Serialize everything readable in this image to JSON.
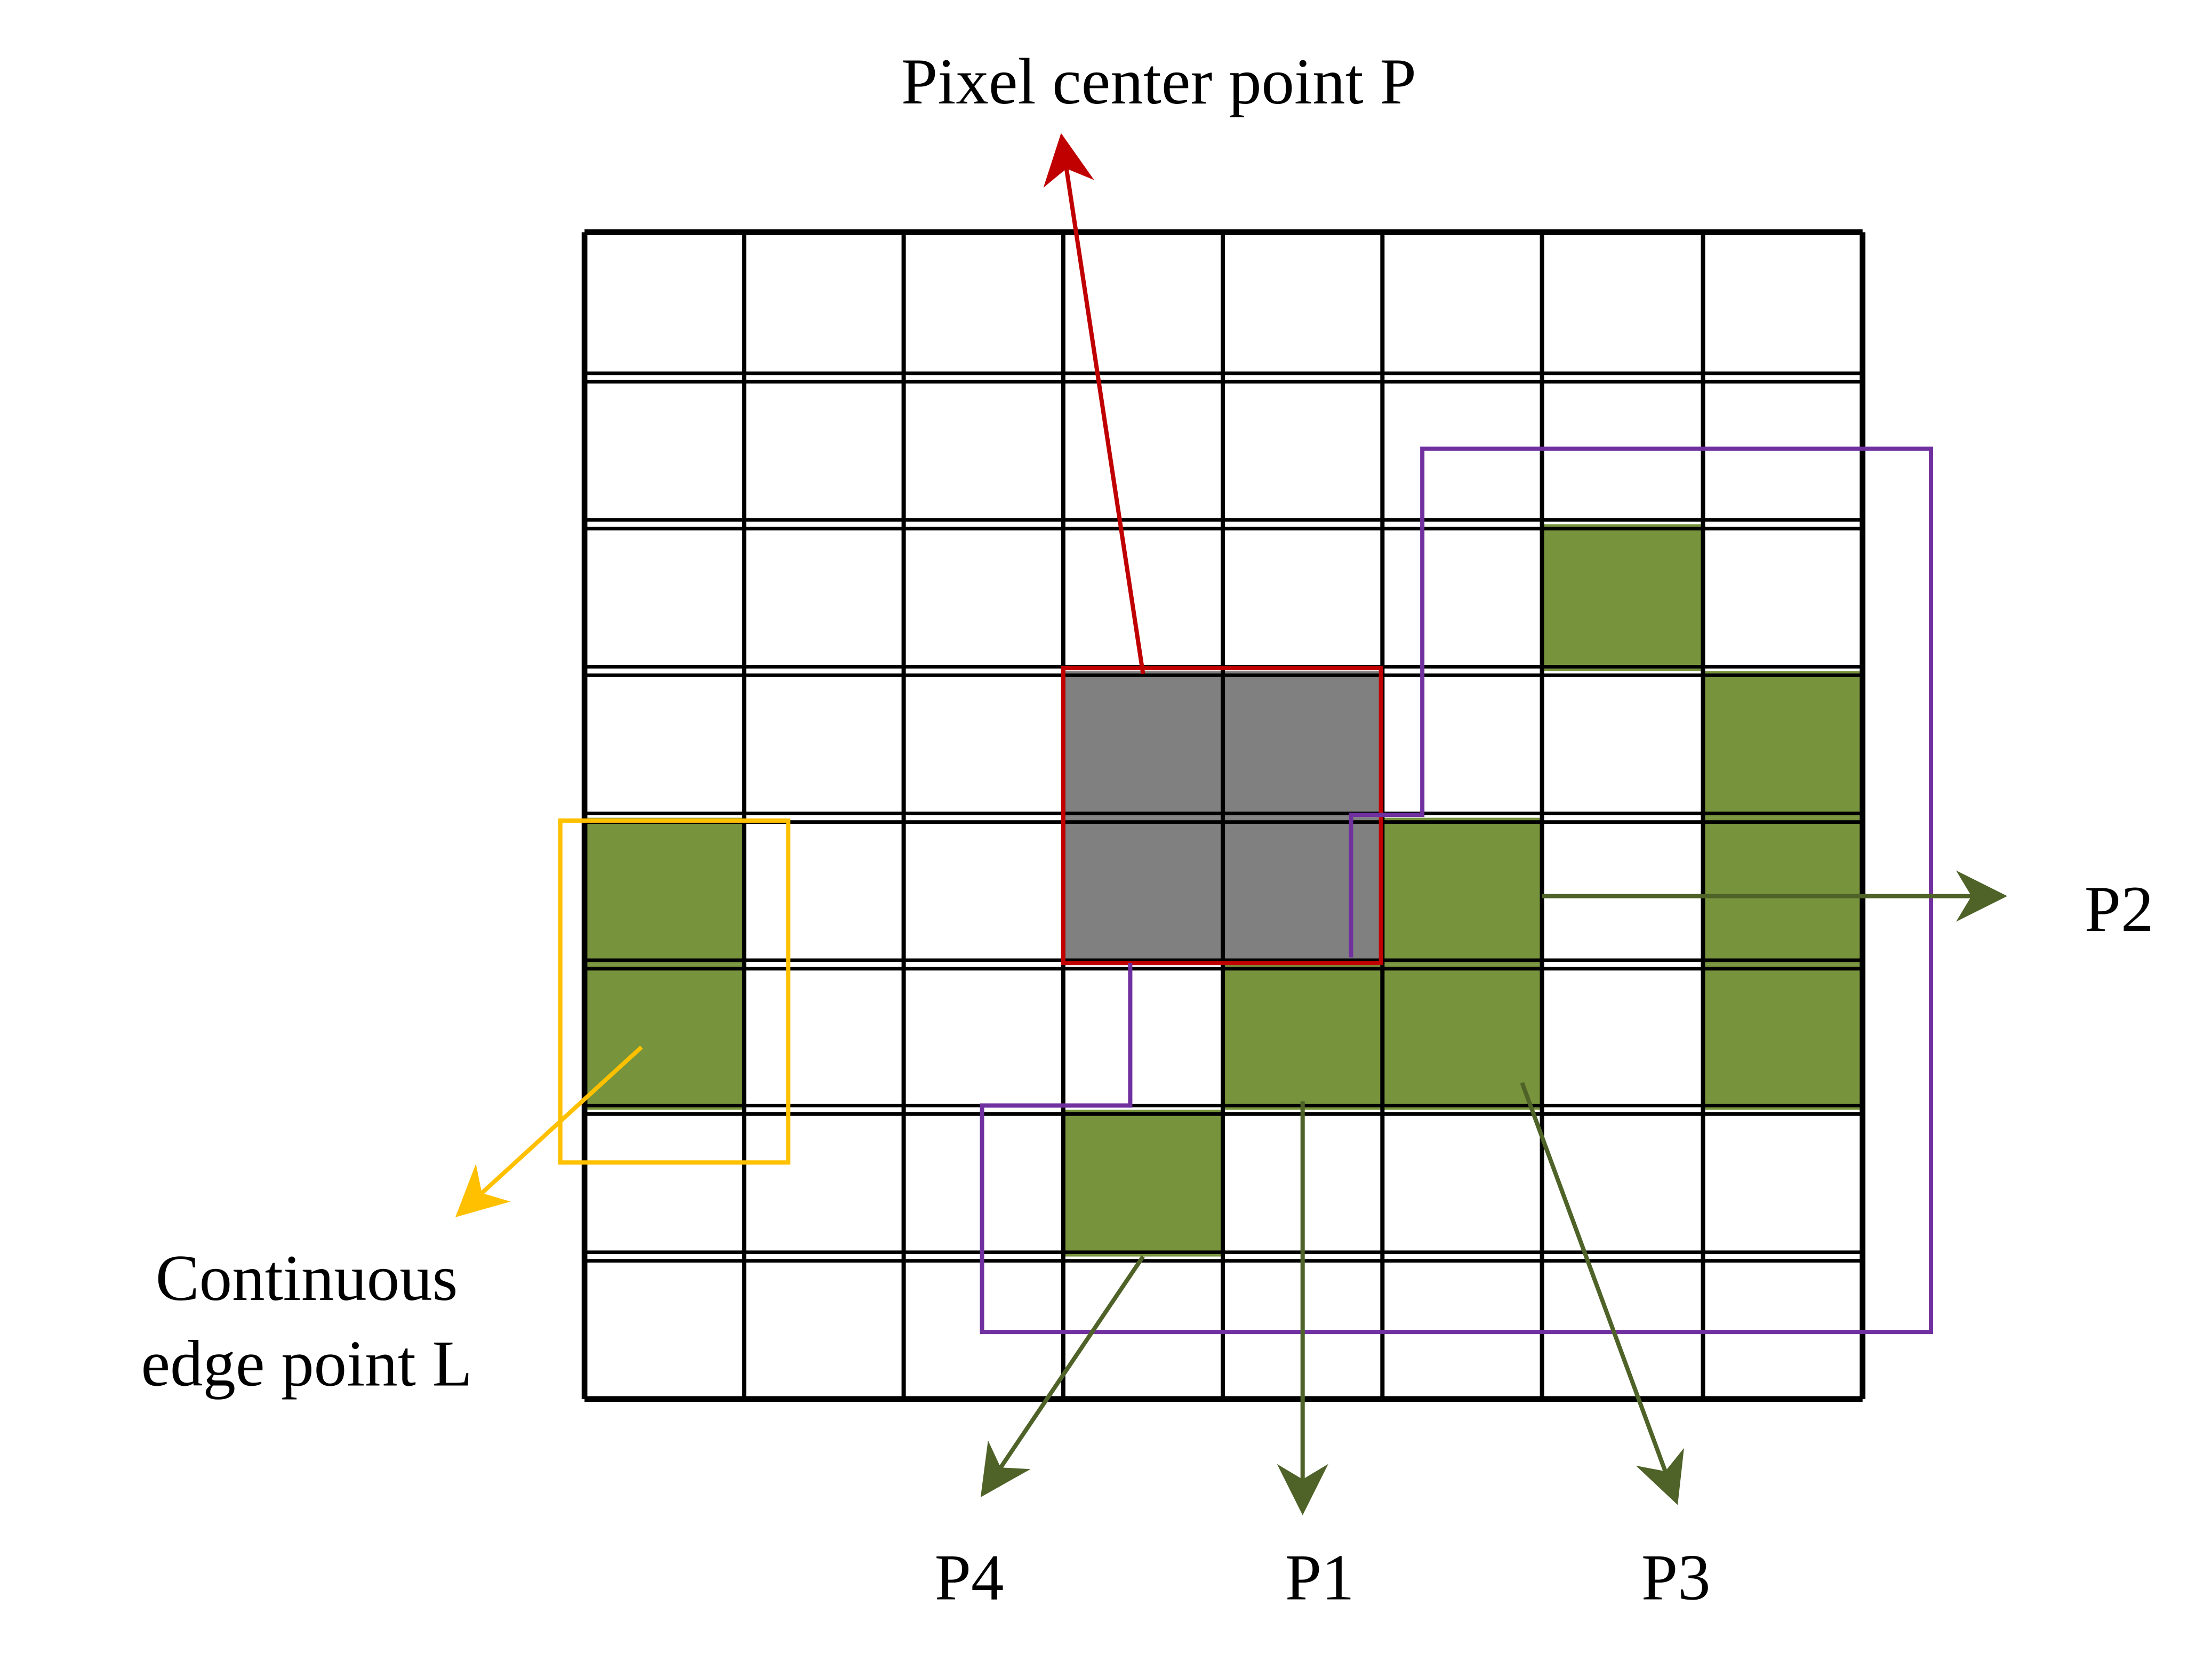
{
  "title": "Pixel center point P",
  "labels": {
    "p1": "P1",
    "p2": "P2",
    "p3": "P3",
    "p4": "P4",
    "edge_point": [
      "Continuous",
      "edge point L"
    ]
  }
}
